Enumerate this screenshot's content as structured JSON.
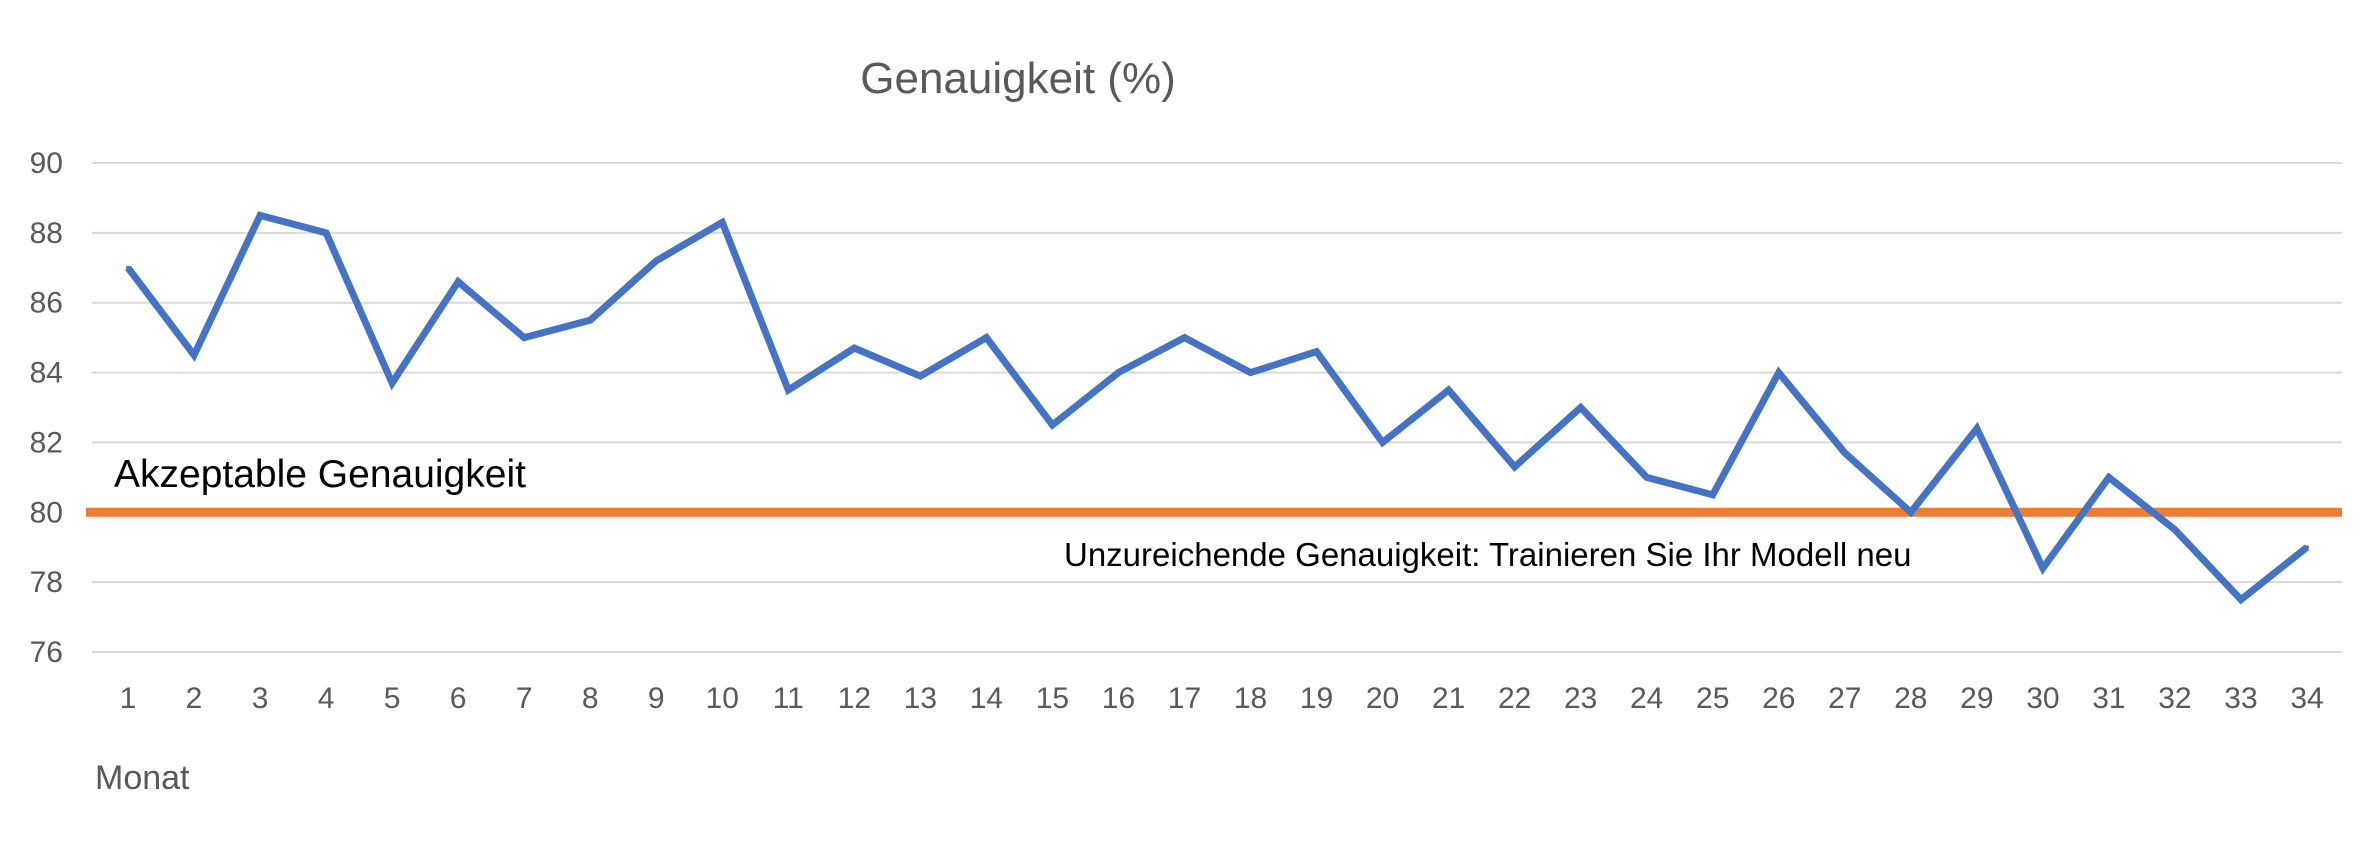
{
  "chart_data": {
    "type": "line",
    "title": "Genauigkeit (%)",
    "xlabel": "Monat",
    "ylabel": "",
    "ylim": [
      76,
      90
    ],
    "yticks": [
      76,
      78,
      80,
      82,
      84,
      86,
      88,
      90
    ],
    "grid": true,
    "categories": [
      "1",
      "2",
      "3",
      "4",
      "5",
      "6",
      "7",
      "8",
      "9",
      "10",
      "11",
      "12",
      "13",
      "14",
      "15",
      "16",
      "17",
      "18",
      "19",
      "20",
      "21",
      "22",
      "23",
      "24",
      "25",
      "26",
      "27",
      "28",
      "29",
      "30",
      "31",
      "32",
      "33",
      "34"
    ],
    "series": [
      {
        "values": [
          87.0,
          84.5,
          88.5,
          88.0,
          83.7,
          86.6,
          85.0,
          85.5,
          87.2,
          88.3,
          83.5,
          84.7,
          83.9,
          85.0,
          82.5,
          84.0,
          85.0,
          84.0,
          84.6,
          82.0,
          83.5,
          81.3,
          83.0,
          81.0,
          80.5,
          84.0,
          81.7,
          80.0,
          82.4,
          78.4,
          81.0,
          79.5,
          77.5,
          79.0
        ],
        "color": "#4472c4"
      }
    ],
    "threshold": {
      "value": 80,
      "color": "#ed7d31",
      "label_above": "Akzeptable Genauigkeit",
      "label_below": "Unzureichende Genauigkeit: Trainieren Sie Ihr Modell neu"
    }
  }
}
